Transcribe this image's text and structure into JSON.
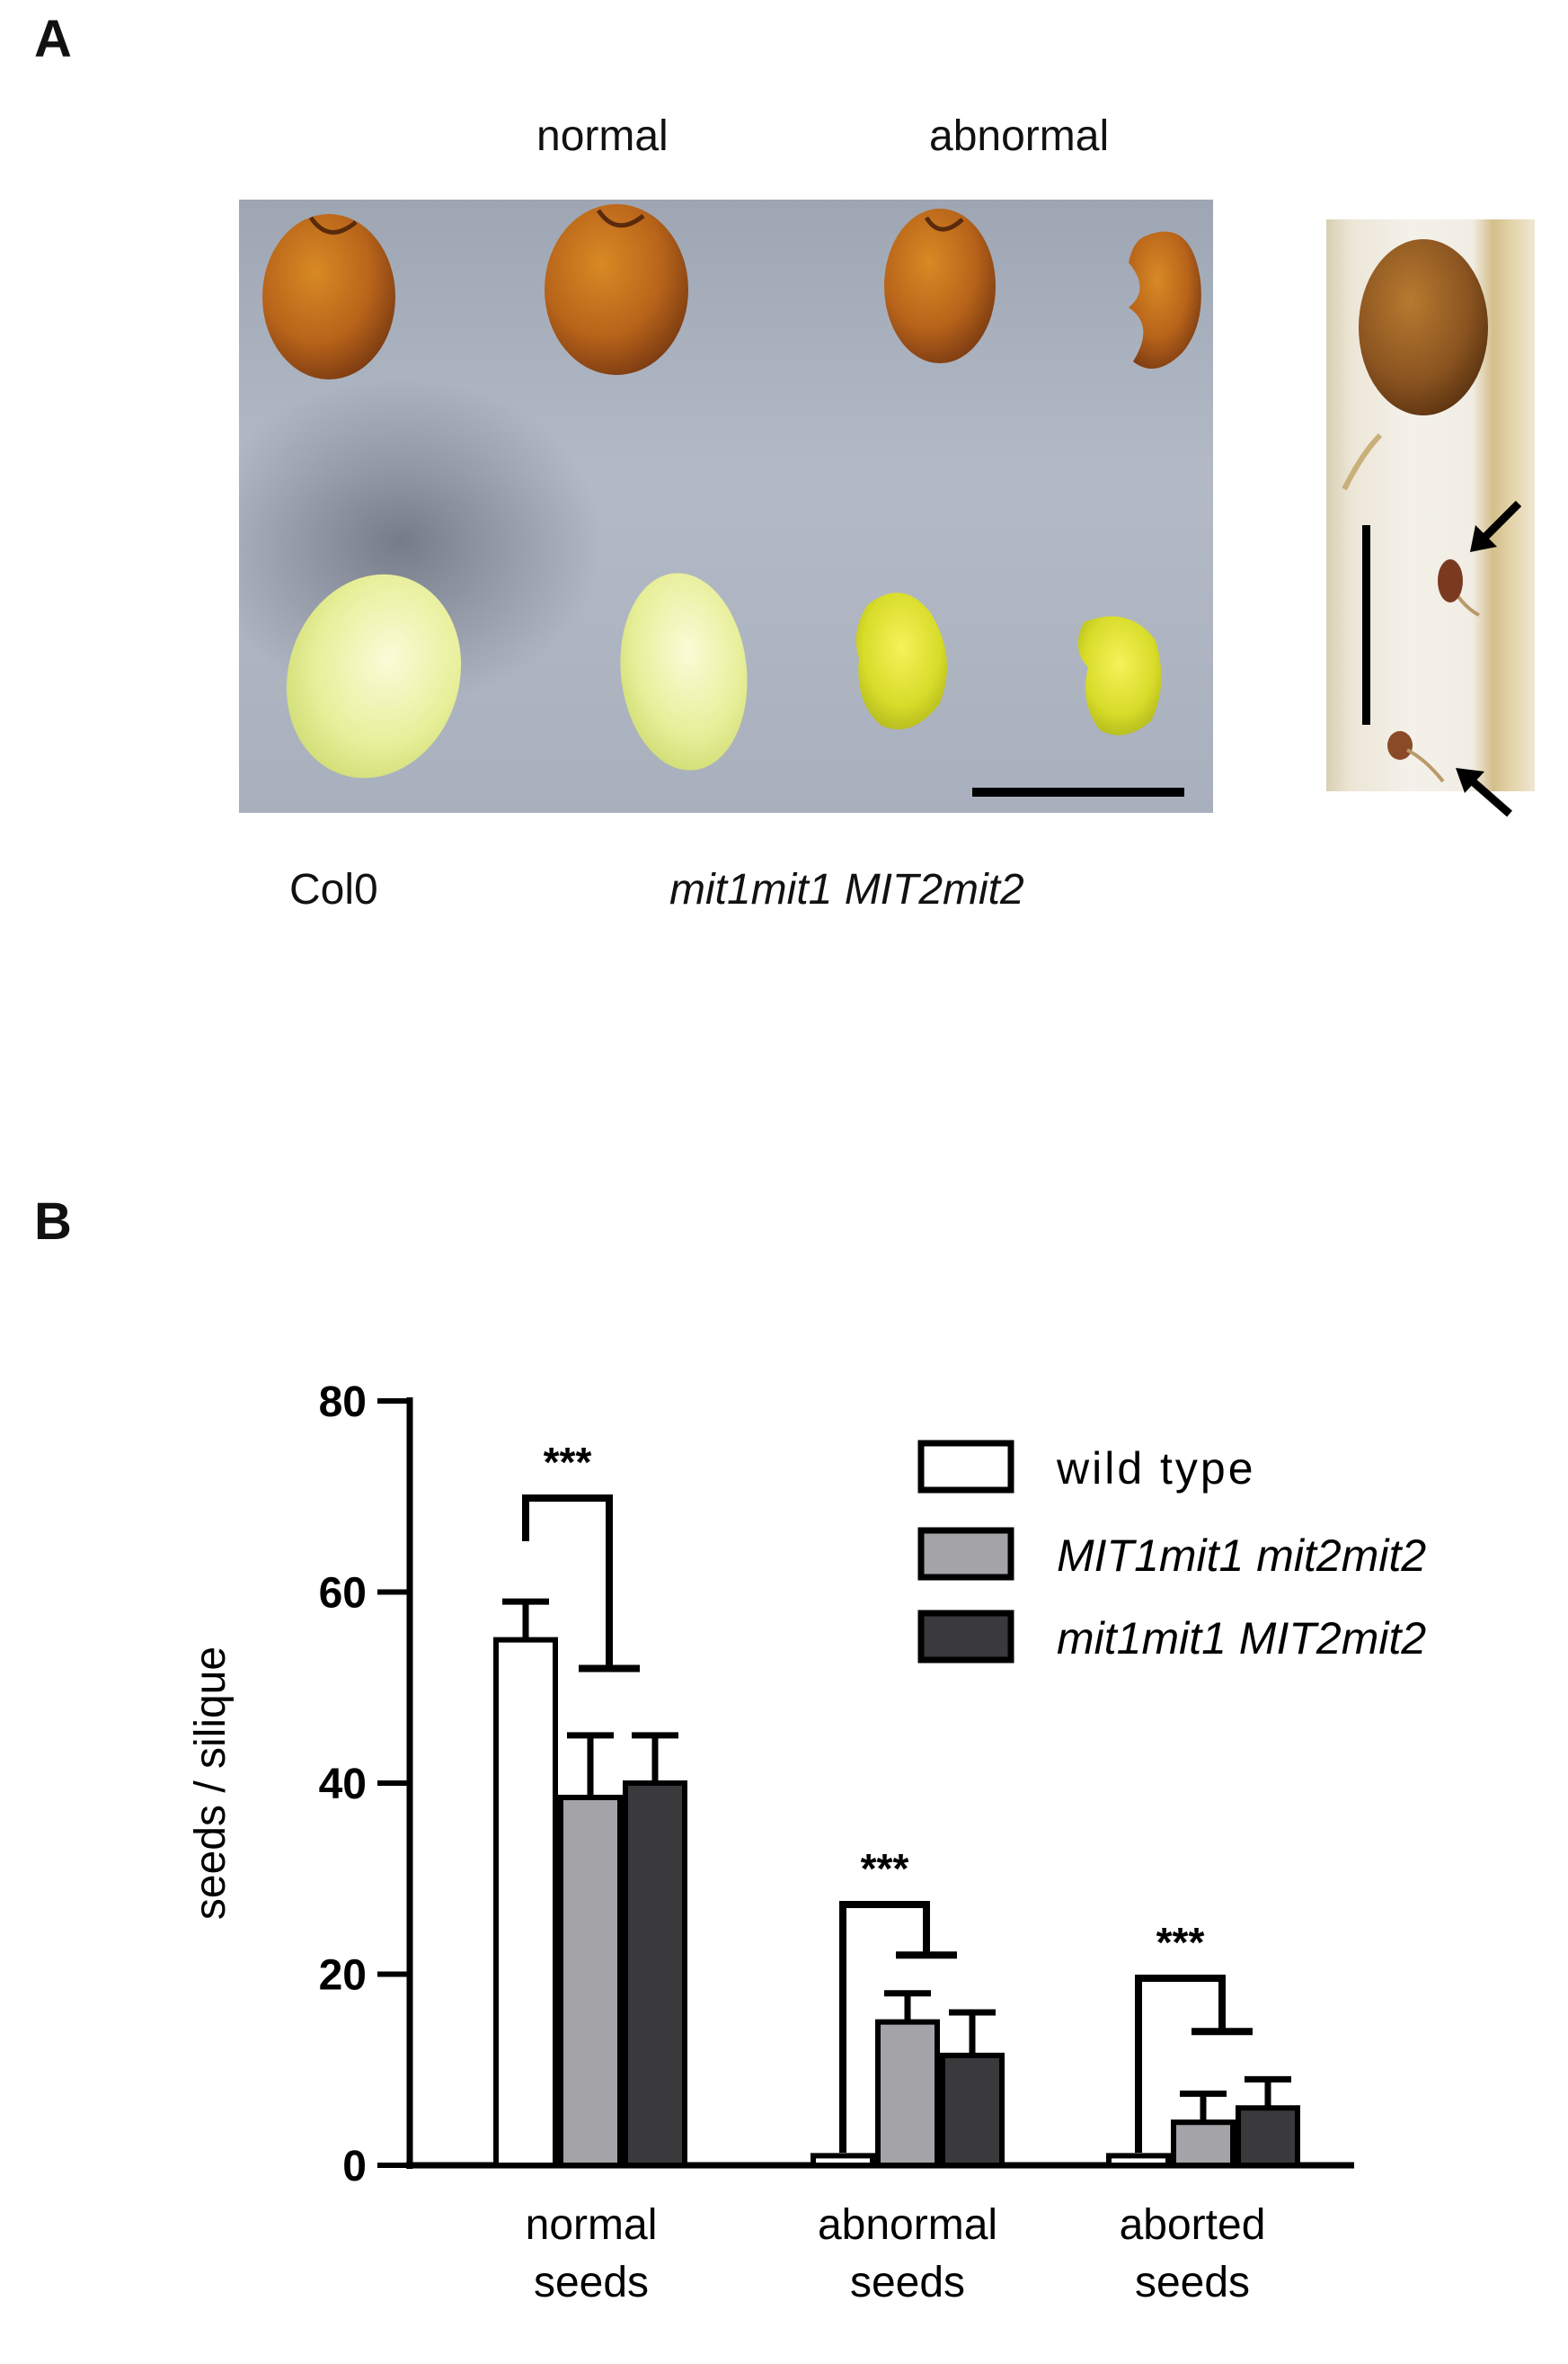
{
  "panel_a": {
    "letter": "A",
    "header_normal": "normal",
    "header_abnormal": "abnormal",
    "label_col0": "Col0",
    "label_mutant": "mit1mit1 MIT2mit2"
  },
  "panel_b": {
    "letter": "B"
  },
  "chart_data": {
    "type": "bar",
    "categories": [
      "normal\nseeds",
      "abnormal\nseeds",
      "aborted\nseeds"
    ],
    "category_lines": [
      [
        "normal",
        "seeds"
      ],
      [
        "abnormal",
        "seeds"
      ],
      [
        "aborted",
        "seeds"
      ]
    ],
    "series": [
      {
        "name": "wild type",
        "values": [
          55,
          1,
          1
        ],
        "errors": [
          4,
          0,
          0
        ],
        "color": "#ffffff"
      },
      {
        "name": "MIT1mit1 mit2mit2",
        "values": [
          38.5,
          15,
          4.5
        ],
        "errors": [
          6.5,
          3,
          3
        ],
        "color": "#a3a3a8"
      },
      {
        "name": "mit1mit1 MIT2mit2",
        "values": [
          40,
          11.5,
          6
        ],
        "errors": [
          5,
          4.5,
          3
        ],
        "color": "#3a3a3c"
      }
    ],
    "ylabel": "seeds / silique",
    "ylim": [
      0,
      80
    ],
    "yticks": [
      "0",
      "20",
      "40",
      "60",
      "80"
    ],
    "ytick_values": [
      0,
      20,
      40,
      60,
      80
    ],
    "significance": [
      {
        "category": 0,
        "label": "***",
        "bracket_y_wt": 55,
        "bracket_y_mut": 52
      },
      {
        "category": 1,
        "label": "***",
        "bracket_y_wt": 2,
        "bracket_y_mut": 22
      },
      {
        "category": 2,
        "label": "***",
        "bracket_y_wt": 2,
        "bracket_y_mut": 14
      }
    ],
    "legend_position": "top-right",
    "grid": false
  }
}
